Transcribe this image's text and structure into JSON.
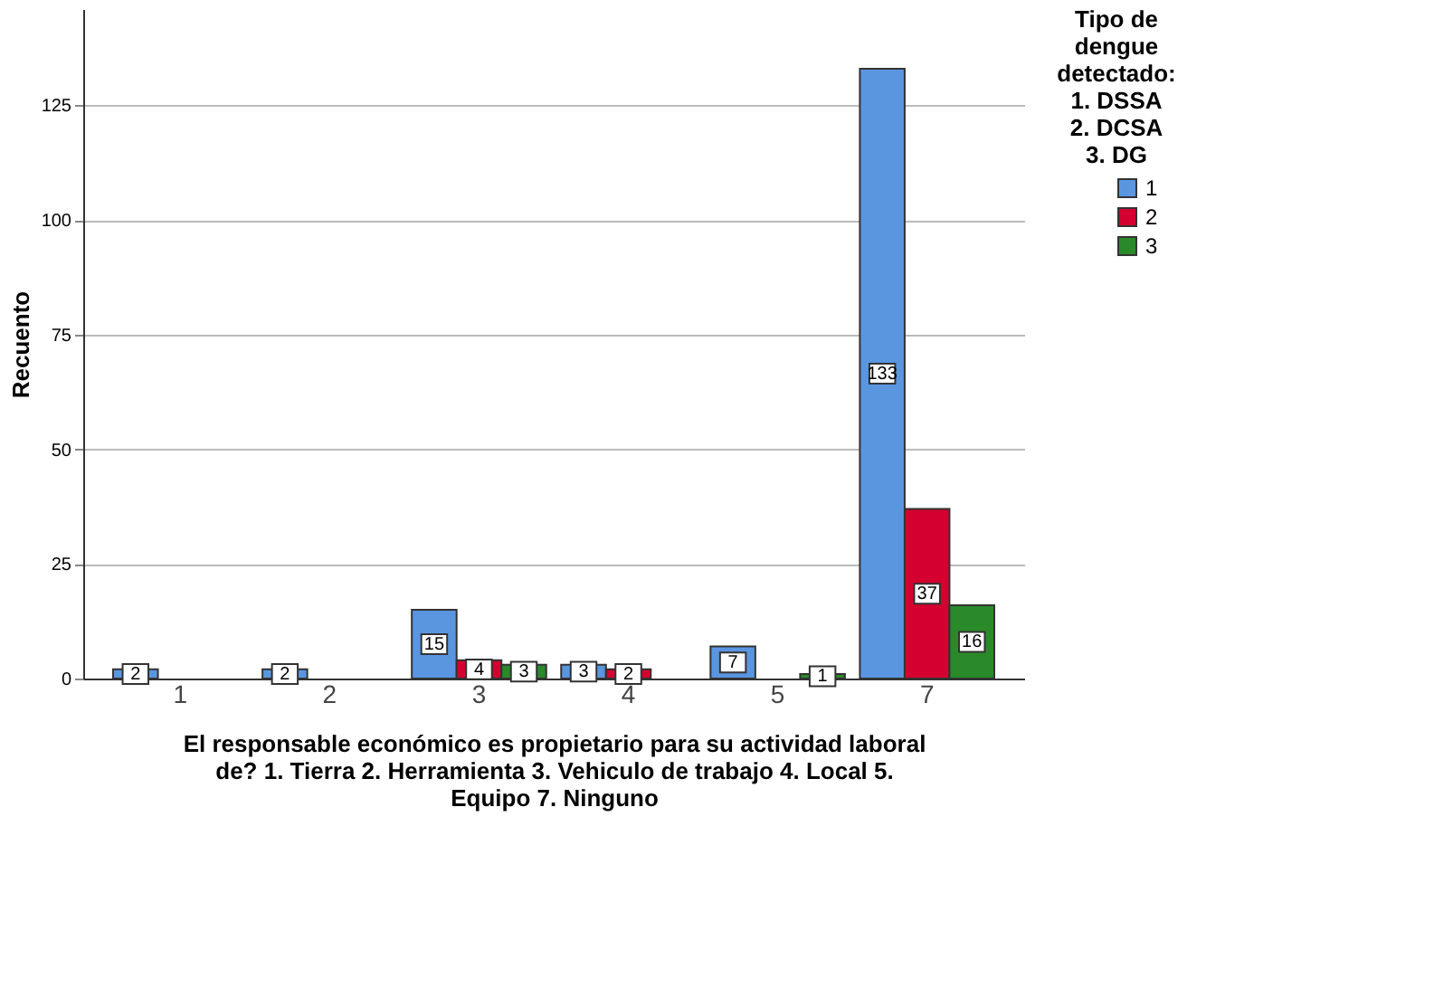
{
  "chart_data": {
    "type": "bar",
    "xlabel": "El responsable económico es propietario para su actividad laboral\nde? 1. Tierra 2. Herramienta 3. Vehiculo de trabajo 4. Local 5.\nEquipo 7. Ninguno",
    "ylabel": "Recuento",
    "legend_title": "Tipo de\ndengue\ndetectado:\n1. DSSA\n2. DCSA\n3. DG",
    "categories": [
      "1",
      "2",
      "3",
      "4",
      "5",
      "7"
    ],
    "series": [
      {
        "name": "1",
        "color": "#5a96e0",
        "values": [
          2,
          2,
          15,
          3,
          7,
          133
        ]
      },
      {
        "name": "2",
        "color": "#d4002f",
        "values": [
          null,
          null,
          4,
          2,
          null,
          37
        ]
      },
      {
        "name": "3",
        "color": "#2a8a2a",
        "values": [
          null,
          null,
          3,
          null,
          1,
          16
        ]
      }
    ],
    "ylim": [
      0,
      146
    ],
    "yticks": [
      0,
      25,
      50,
      75,
      100,
      125
    ],
    "grid": "y",
    "legend": "top right",
    "data_labels": true
  }
}
